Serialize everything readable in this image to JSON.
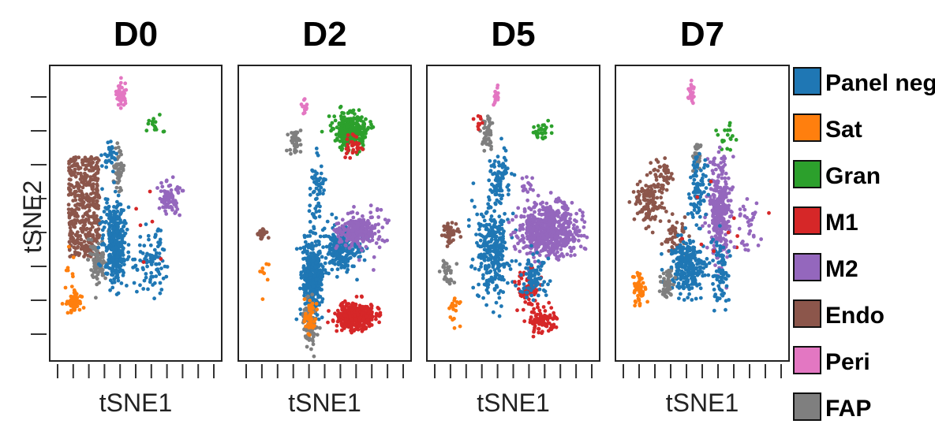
{
  "chart_data": {
    "type": "scatter",
    "ylabel": "tSNE2",
    "xlabel": "tSNE1",
    "panels": [
      {
        "title": "D0",
        "xlabel": "tSNE1"
      },
      {
        "title": "D2",
        "xlabel": "tSNE1"
      },
      {
        "title": "D5",
        "xlabel": "tSNE1"
      },
      {
        "title": "D7",
        "xlabel": "tSNE1"
      }
    ],
    "legend": {
      "placement": "right",
      "entries": [
        {
          "name": "Panel neg",
          "color": "#1f77b4"
        },
        {
          "name": "Sat",
          "color": "#ff7f0e"
        },
        {
          "name": "Gran",
          "color": "#2ca02c"
        },
        {
          "name": "M1",
          "color": "#d62728"
        },
        {
          "name": "M2",
          "color": "#9467bd"
        },
        {
          "name": "Endo",
          "color": "#8c564b"
        },
        {
          "name": "Peri",
          "color": "#e377c2"
        },
        {
          "name": "FAP",
          "color": "#7f7f7f"
        }
      ]
    },
    "grid": false
  }
}
